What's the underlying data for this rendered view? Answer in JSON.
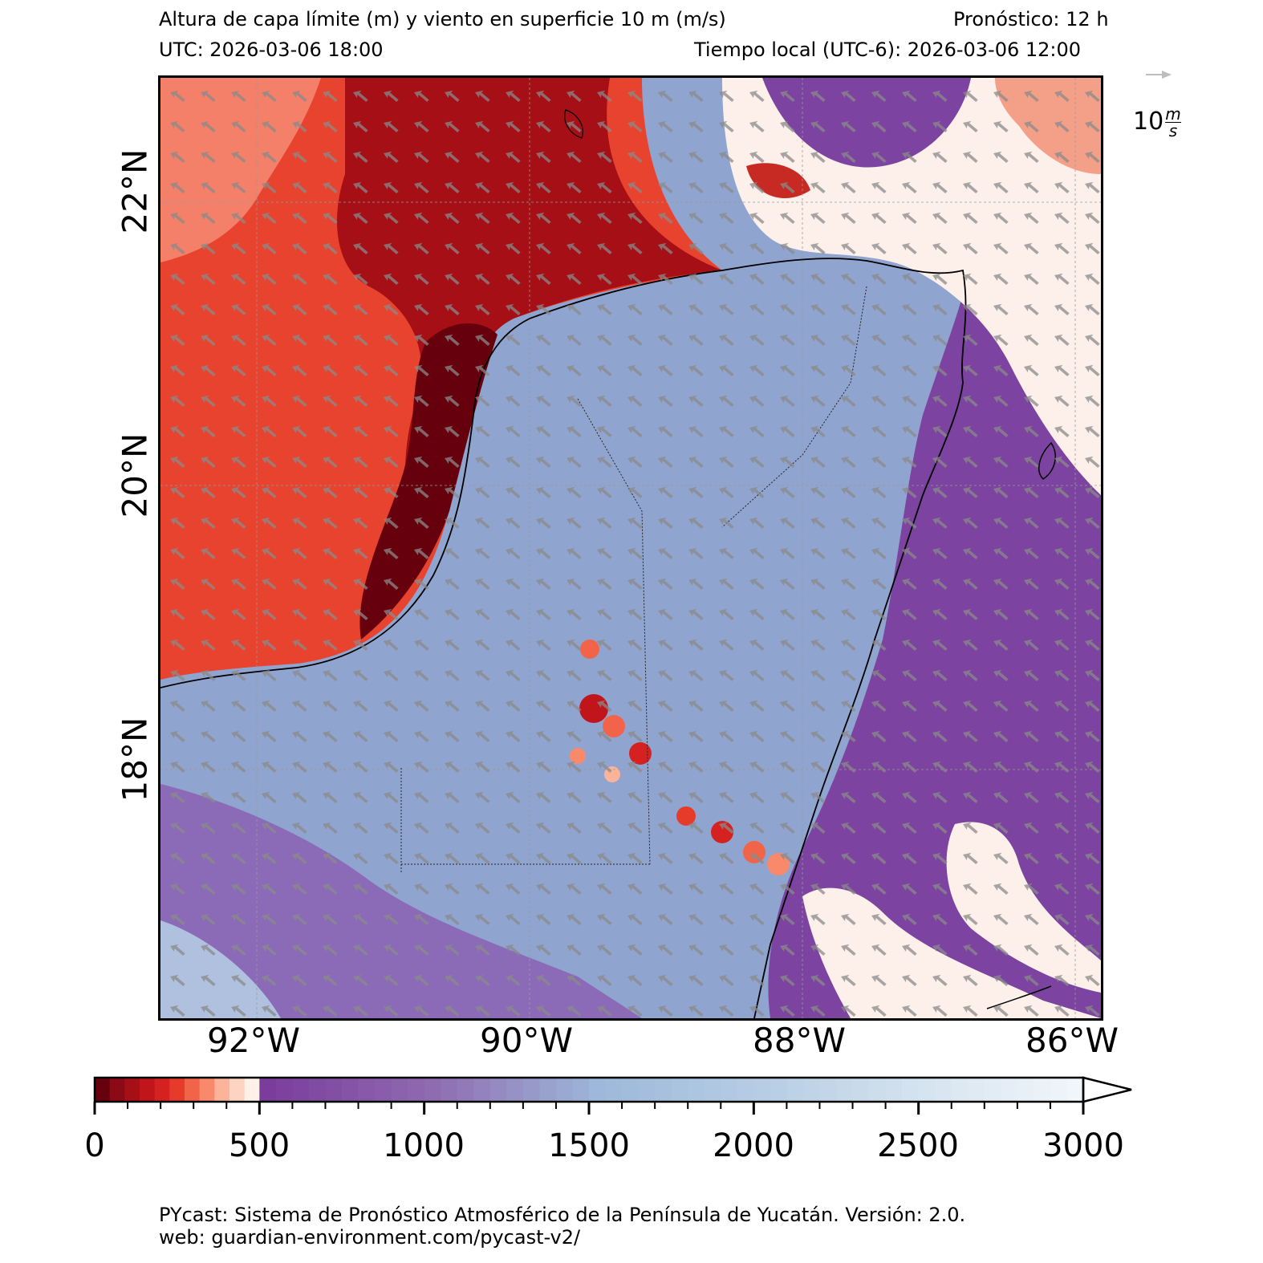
{
  "header": {
    "title": "Altura de capa límite (m) y viento en superficie 10 m (m/s)",
    "forecast": "Pronóstico: 12 h",
    "utc": "UTC:  2026-03-06 18:00",
    "local_time": "Tiempo local (UTC-6): 2026-03-06 12:00"
  },
  "map": {
    "lat_labels": [
      "22°N",
      "20°N",
      "18°N"
    ],
    "lon_labels": [
      "92°W",
      "90°W",
      "88°W",
      "86°W"
    ],
    "wind_key": {
      "value": "10",
      "unit_num": "m",
      "unit_den": "s"
    }
  },
  "colorbar": {
    "min": 0,
    "max": 3000,
    "ticks": [
      "0",
      "500",
      "1000",
      "1500",
      "2000",
      "2500",
      "3000"
    ],
    "low_colors": [
      "#67000d",
      "#8b0a16",
      "#a50f15",
      "#c0161b",
      "#d52221",
      "#e63b2a",
      "#f26449",
      "#f88a6b",
      "#fbb49a",
      "#fdd3c1",
      "#fff0e8"
    ],
    "high_stops": [
      {
        "value": 500,
        "color": "#7a3d9c"
      },
      {
        "value": 1000,
        "color": "#8f6bb0"
      },
      {
        "value": 1500,
        "color": "#9db8da"
      },
      {
        "value": 2000,
        "color": "#b6cde4"
      },
      {
        "value": 2500,
        "color": "#d6e4f0"
      },
      {
        "value": 3000,
        "color": "#f3f8fb"
      }
    ]
  },
  "footer": {
    "line1": "PYcast: Sistema de Pronóstico Atmosférico de la Península de Yucatán. Versión: 2.0.",
    "line2": "web: guardian-environment.com/pycast-v2/"
  }
}
